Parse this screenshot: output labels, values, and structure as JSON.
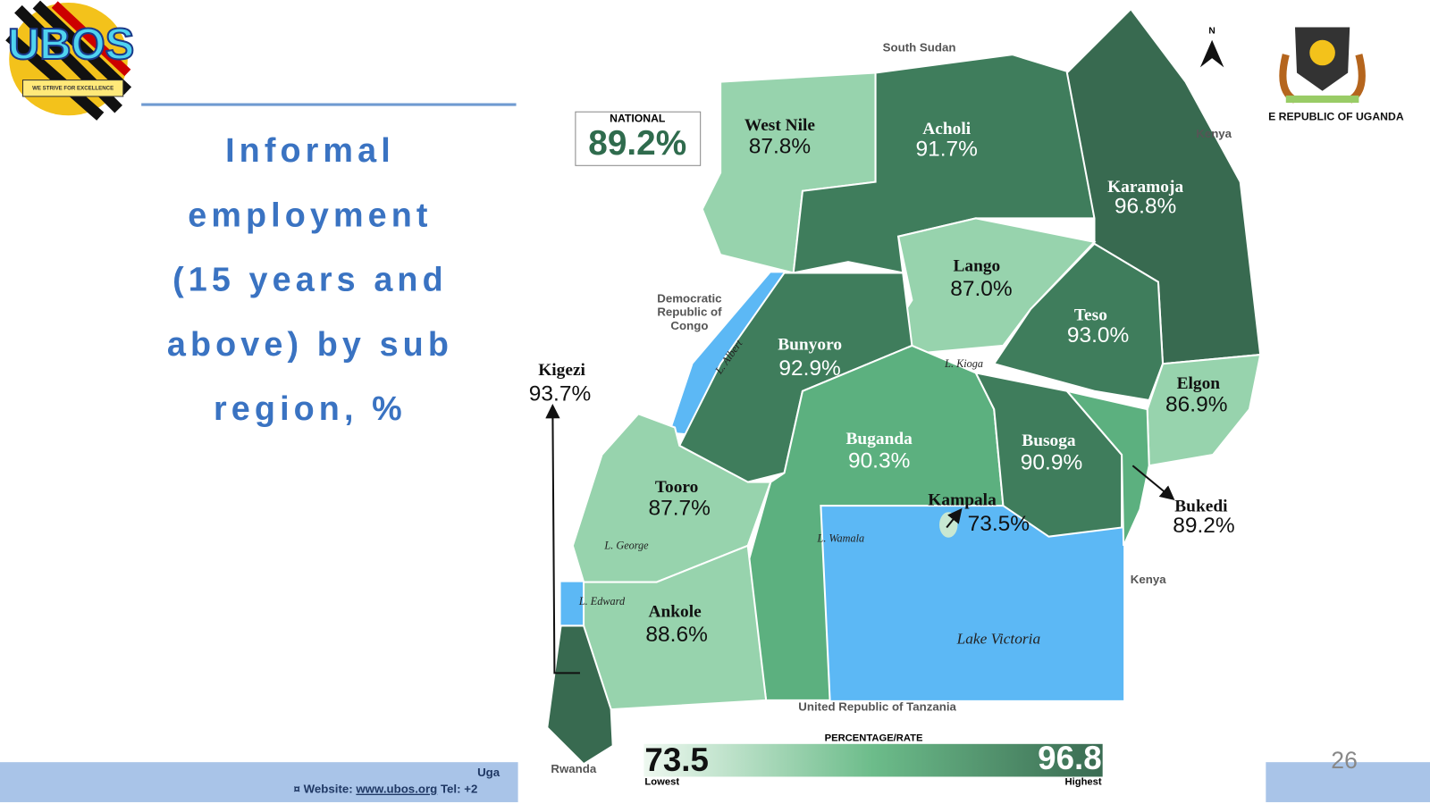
{
  "header": {
    "logo_text": "UBOS",
    "logo_motto": "WE STRIVE FOR EXCELLENCE",
    "title_lines": [
      "Informal",
      "employment",
      "(15 years and",
      "above) by sub",
      "region, %"
    ],
    "coat_of_arms_caption": "E REPUBLIC OF UGANDA"
  },
  "map": {
    "north": "N",
    "national": {
      "label": "NATIONAL",
      "value": "89.2%"
    },
    "regions": [
      {
        "name": "West Nile",
        "value": "87.8%"
      },
      {
        "name": "Acholi",
        "value": "91.7%"
      },
      {
        "name": "Karamoja",
        "value": "96.8%"
      },
      {
        "name": "Lango",
        "value": "87.0%"
      },
      {
        "name": "Teso",
        "value": "93.0%"
      },
      {
        "name": "Bunyoro",
        "value": "92.9%"
      },
      {
        "name": "Elgon",
        "value": "86.9%"
      },
      {
        "name": "Buganda",
        "value": "90.3%"
      },
      {
        "name": "Busoga",
        "value": "90.9%"
      },
      {
        "name": "Tooro",
        "value": "87.7%"
      },
      {
        "name": "Ankole",
        "value": "88.6%"
      },
      {
        "name": "Kigezi",
        "value": "93.7%"
      },
      {
        "name": "Kampala",
        "value": "73.5%"
      },
      {
        "name": "Bukedi",
        "value": "89.2%"
      }
    ],
    "places": [
      "South Sudan",
      "Kenya",
      "Democratic",
      "Republic of",
      "Congo",
      "Kenya",
      "United Republic of Tanzania",
      "Rwanda"
    ],
    "water": [
      "L. Albert",
      "L. Kioga",
      "L. George",
      "L. Edward",
      "L. Wamala",
      "Lake Victoria"
    ],
    "legend": {
      "title": "PERCENTAGE/RATE",
      "low": "73.5",
      "low_label": "Lowest",
      "high": "96.8",
      "high_label": "Highest"
    }
  },
  "footer": {
    "line1": "Uga",
    "website_prefix": "¤ Website: ",
    "website": "www.ubos.org",
    "tel": " Tel: +2",
    "page": "26"
  }
}
